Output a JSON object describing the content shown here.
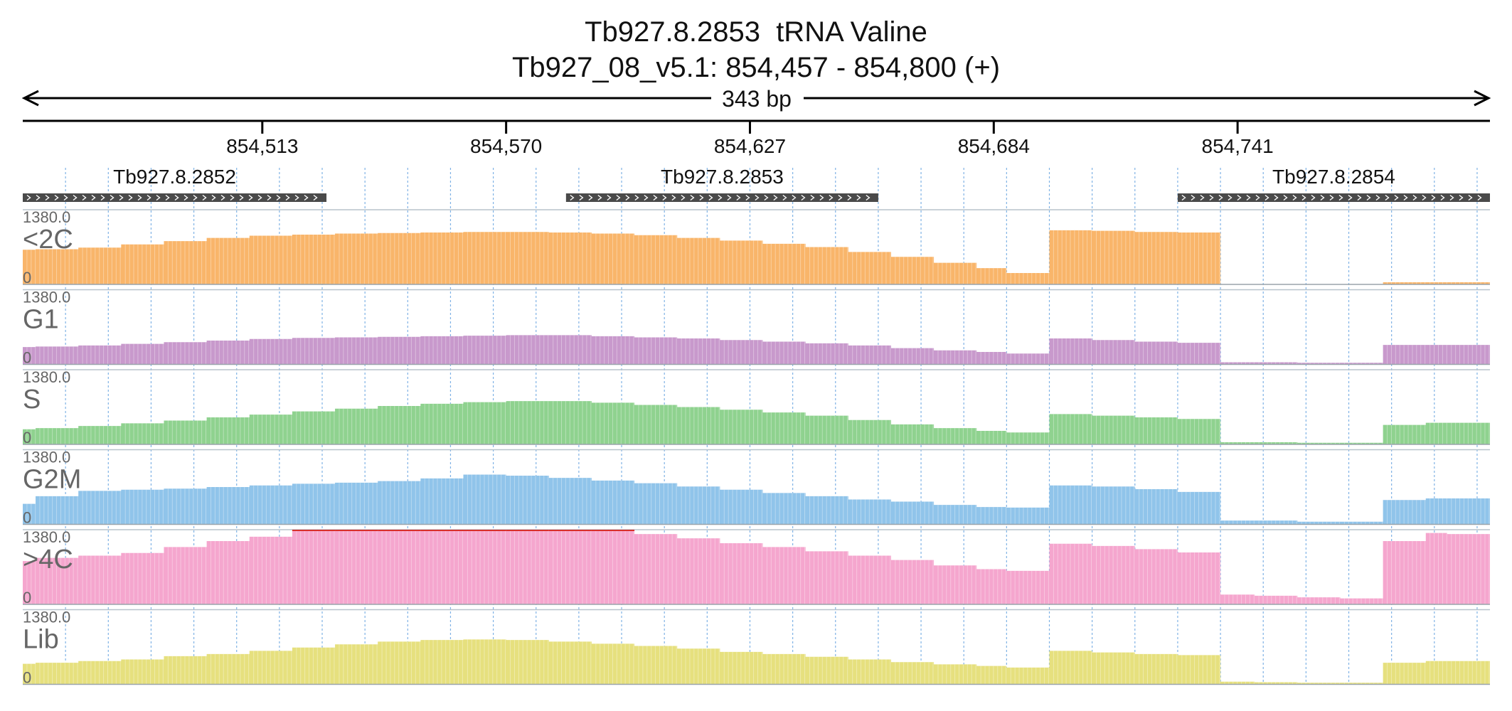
{
  "header": {
    "line1": "Tb927.8.2853  tRNA Valine",
    "line2": "Tb927_08_v5.1: 854,457 - 854,800 (+)"
  },
  "chart_data": {
    "type": "area",
    "region": {
      "chrom": "Tb927_08_v5.1",
      "start": 854457,
      "end": 854800,
      "strand": "+"
    },
    "span_label": "343 bp",
    "ticks": [
      {
        "pos": 854513,
        "label": "854,513"
      },
      {
        "pos": 854570,
        "label": "854,570"
      },
      {
        "pos": 854627,
        "label": "854,627"
      },
      {
        "pos": 854684,
        "label": "854,684"
      },
      {
        "pos": 854741,
        "label": "854,741"
      }
    ],
    "genes": [
      {
        "name": "Tb927.8.2852",
        "start": 854457,
        "end": 854528,
        "strand": "+"
      },
      {
        "name": "Tb927.8.2853",
        "start": 854584,
        "end": 854657,
        "strand": "+"
      },
      {
        "name": "Tb927.8.2854",
        "start": 854727,
        "end": 854800,
        "strand": "+"
      }
    ],
    "ylim": [
      0,
      1380.0
    ],
    "ymax_label": "1380.0",
    "ymin_label": "0",
    "bin_edges": [
      854457,
      854460,
      854470,
      854480,
      854490,
      854500,
      854510,
      854520,
      854530,
      854540,
      854550,
      854560,
      854570,
      854580,
      854590,
      854600,
      854610,
      854620,
      854630,
      854640,
      854650,
      854660,
      854670,
      854680,
      854687,
      854697,
      854707,
      854717,
      854727,
      854737,
      854745,
      854755,
      854765,
      854775,
      854785,
      854790,
      854800
    ],
    "series": [
      {
        "name": "<2C",
        "color": "#f9b56a",
        "values": [
          640,
          650,
          680,
          740,
          800,
          860,
          900,
          920,
          940,
          950,
          960,
          970,
          970,
          960,
          940,
          910,
          860,
          810,
          750,
          690,
          600,
          510,
          400,
          300,
          210,
          1000,
          990,
          970,
          960,
          0,
          0,
          0,
          0,
          40,
          40,
          40
        ]
      },
      {
        "name": "G1",
        "color": "#c899cc",
        "values": [
          320,
          330,
          350,
          380,
          410,
          440,
          470,
          490,
          500,
          510,
          520,
          530,
          540,
          540,
          520,
          500,
          480,
          450,
          420,
          390,
          350,
          300,
          260,
          230,
          200,
          480,
          450,
          420,
          400,
          40,
          40,
          30,
          30,
          360,
          360,
          360
        ]
      },
      {
        "name": "S",
        "color": "#8fd28f",
        "values": [
          280,
          300,
          340,
          390,
          440,
          500,
          550,
          610,
          660,
          710,
          750,
          780,
          800,
          800,
          770,
          730,
          690,
          640,
          590,
          530,
          450,
          370,
          300,
          250,
          220,
          560,
          530,
          500,
          470,
          40,
          40,
          30,
          30,
          360,
          400,
          400
        ]
      },
      {
        "name": "G2M",
        "color": "#90c4ea",
        "values": [
          380,
          520,
          620,
          640,
          660,
          690,
          720,
          750,
          770,
          800,
          850,
          920,
          900,
          860,
          810,
          760,
          700,
          640,
          580,
          520,
          460,
          420,
          360,
          320,
          310,
          720,
          700,
          650,
          600,
          70,
          70,
          50,
          50,
          450,
          480,
          480
        ]
      },
      {
        "name": ">4C",
        "color": "#f5a6ce",
        "values": [
          800,
          860,
          900,
          950,
          1060,
          1170,
          1250,
          1380,
          1380,
          1380,
          1380,
          1380,
          1380,
          1380,
          1380,
          1300,
          1220,
          1130,
          1060,
          980,
          900,
          820,
          720,
          650,
          620,
          1120,
          1080,
          1020,
          960,
          180,
          160,
          130,
          110,
          1170,
          1320,
          1300
        ]
      },
      {
        "name": "Lib",
        "color": "#e6e07e",
        "values": [
          380,
          400,
          430,
          460,
          520,
          560,
          620,
          680,
          740,
          790,
          820,
          830,
          820,
          790,
          750,
          710,
          660,
          600,
          560,
          510,
          460,
          410,
          370,
          340,
          310,
          620,
          590,
          560,
          540,
          50,
          40,
          30,
          30,
          400,
          430,
          430
        ]
      }
    ]
  }
}
